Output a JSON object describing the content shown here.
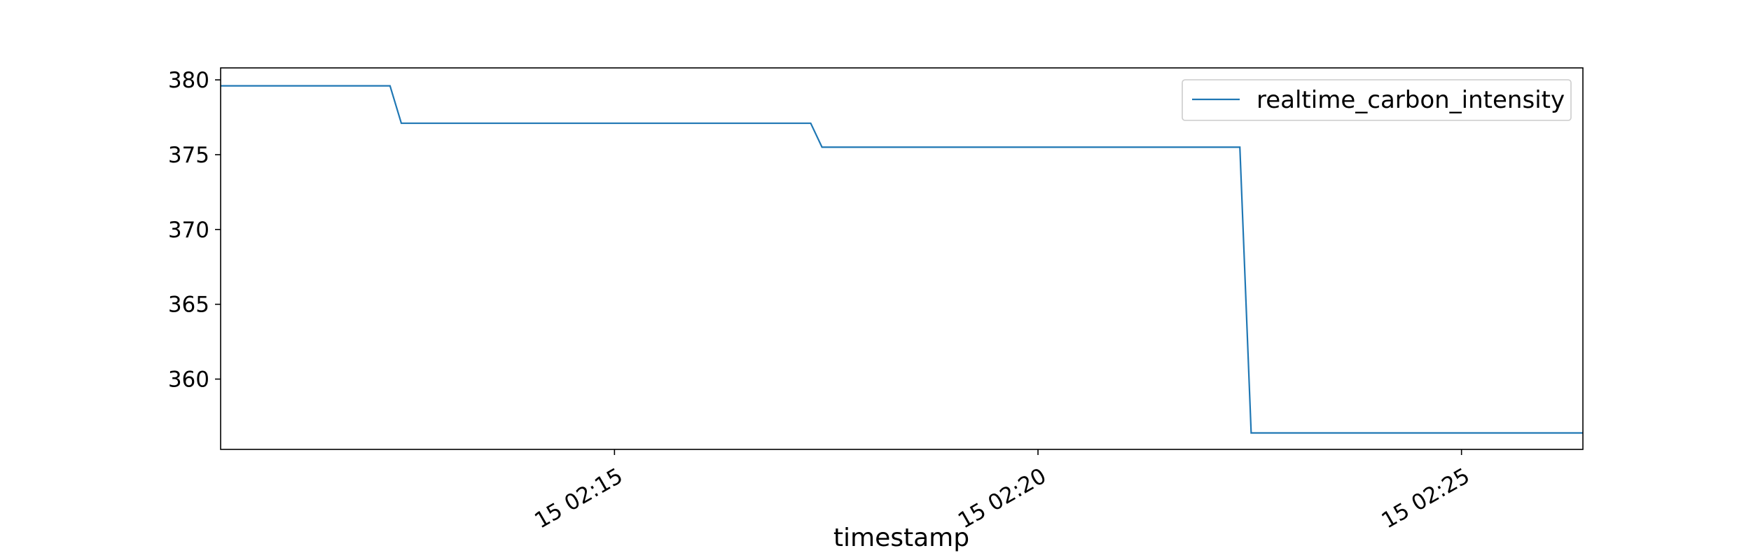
{
  "chart_data": {
    "type": "line",
    "title": "",
    "xlabel": "timestamp",
    "ylabel": "",
    "x_type": "time",
    "x_date_prefix": "15",
    "x_tick_labels": [
      "15 02:15",
      "15 02:20",
      "15 02:25"
    ],
    "x_tick_values": [
      "02:15:00",
      "02:20:00",
      "02:25:00"
    ],
    "xlim": [
      "02:10:21",
      "02:26:26"
    ],
    "y_tick_labels": [
      "360",
      "365",
      "370",
      "375",
      "380"
    ],
    "y_tick_values": [
      360,
      365,
      370,
      375,
      380
    ],
    "ylim": [
      355.3,
      380.8
    ],
    "grid": false,
    "legend": {
      "position": "upper right",
      "entries": [
        "realtime_carbon_intensity"
      ]
    },
    "series": [
      {
        "name": "realtime_carbon_intensity",
        "color": "#1f77b4",
        "x": [
          "02:10:21",
          "02:12:21",
          "02:12:29",
          "02:17:19",
          "02:17:27",
          "02:22:23",
          "02:22:31",
          "02:26:26"
        ],
        "y": [
          379.6,
          379.6,
          377.1,
          377.1,
          375.5,
          375.5,
          356.4,
          356.4
        ]
      }
    ]
  }
}
